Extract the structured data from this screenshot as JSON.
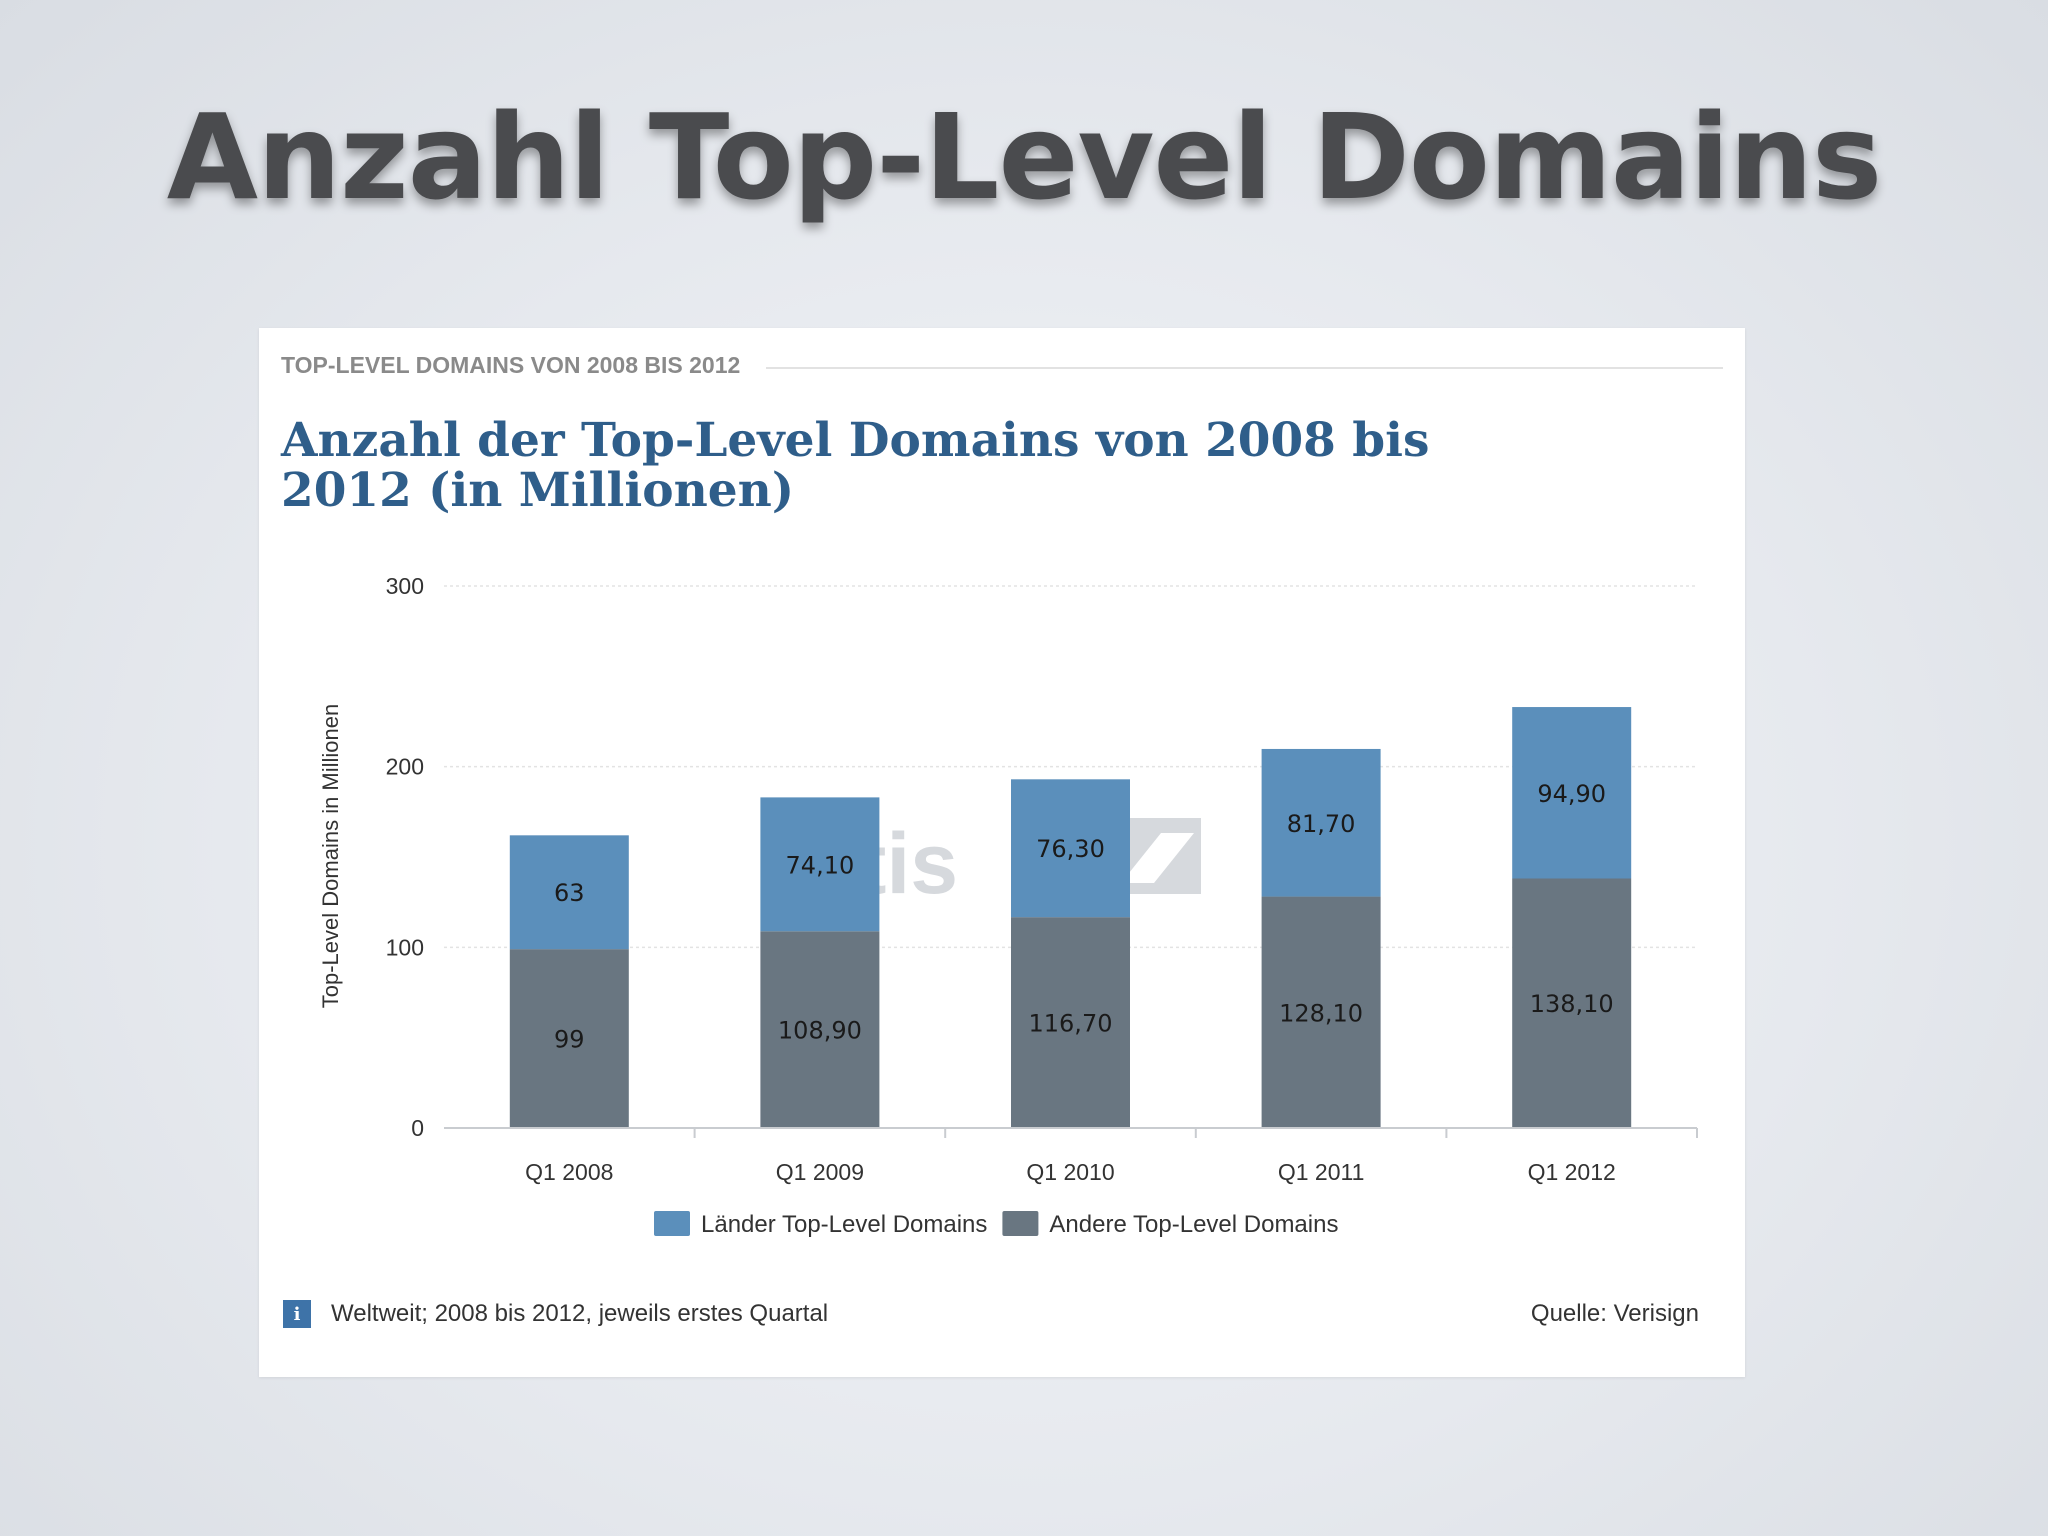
{
  "slide": {
    "title": "Anzahl Top-Level Domains"
  },
  "card": {
    "kicker": "TOP-LEVEL DOMAINS VON 2008 BIS 2012",
    "note": "Weltweit; 2008 bis 2012, jeweils erstes Quartal",
    "source": "Quelle: Verisign",
    "info_icon": "info-icon",
    "watermark": "atis"
  },
  "colors": {
    "laender": "#5b8fbb",
    "andere": "#697681",
    "title": "#2f5e8a",
    "info": "#3e73a8"
  },
  "chart_data": {
    "type": "bar",
    "stacked": true,
    "title": "Anzahl der Top-Level Domains von 2008 bis 2012 (in Millionen)",
    "xlabel": "",
    "ylabel": "Top-Level Domains in Millionen",
    "ylim": [
      0,
      300
    ],
    "yticks": [
      0,
      100,
      200,
      300
    ],
    "grid": true,
    "legend_position": "bottom",
    "categories": [
      "Q1 2008",
      "Q1 2009",
      "Q1 2010",
      "Q1 2011",
      "Q1 2012"
    ],
    "series": [
      {
        "name": "Andere Top-Level Domains",
        "color": "#697681",
        "values": [
          99,
          108.9,
          116.7,
          128.1,
          138.1
        ],
        "labels": [
          "99",
          "108,90",
          "116,70",
          "128,10",
          "138,10"
        ]
      },
      {
        "name": "Länder Top-Level Domains",
        "color": "#5b8fbb",
        "values": [
          63,
          74.1,
          76.3,
          81.7,
          94.9
        ],
        "labels": [
          "63",
          "74,10",
          "76,30",
          "81,70",
          "94,90"
        ]
      }
    ],
    "legend_order": [
      "Länder Top-Level Domains",
      "Andere Top-Level Domains"
    ]
  }
}
